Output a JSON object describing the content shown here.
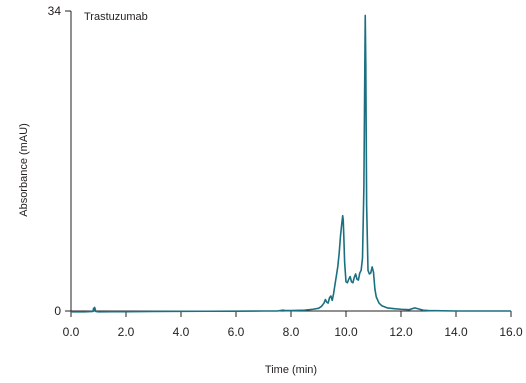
{
  "chart_data": {
    "type": "line",
    "title": "",
    "annotation": "Trastuzumab",
    "xlabel": "Time (min)",
    "ylabel": "Absorbance (mAU)",
    "xlim": [
      0,
      16
    ],
    "ylim": [
      0,
      34
    ],
    "x_ticks": [
      0,
      2,
      4,
      6,
      8,
      10,
      12,
      14,
      16
    ],
    "x_tick_labels": [
      "0.0",
      "2.0",
      "4.0",
      "6.0",
      "8.0",
      "10.0",
      "12.0",
      "14.0",
      "16.0"
    ],
    "y_ticks": [
      0,
      34
    ],
    "y_tick_labels": [
      "0",
      "34"
    ],
    "grid": false,
    "color": "#1a7080",
    "series": [
      {
        "x": [
          0.0,
          0.5,
          0.8,
          0.82,
          0.84,
          0.86,
          0.88,
          0.9,
          1.0,
          1.5,
          2.0,
          3.0,
          4.0,
          5.0,
          6.0,
          7.0,
          7.5,
          7.7,
          7.8,
          8.0,
          8.5,
          8.8,
          9.0,
          9.1,
          9.2,
          9.25,
          9.3,
          9.35,
          9.4,
          9.45,
          9.5,
          9.55,
          9.6,
          9.65,
          9.7,
          9.75,
          9.8,
          9.85,
          9.88,
          9.9,
          9.92,
          9.95,
          10.0,
          10.05,
          10.1,
          10.15,
          10.2,
          10.25,
          10.3,
          10.35,
          10.4,
          10.45,
          10.5,
          10.55,
          10.6,
          10.65,
          10.68,
          10.7,
          10.72,
          10.75,
          10.8,
          10.85,
          10.9,
          10.95,
          11.0,
          11.05,
          11.1,
          11.2,
          11.3,
          11.5,
          11.8,
          12.0,
          12.3,
          12.5,
          12.8,
          13.0,
          14.0,
          15.0,
          15.5,
          16.0
        ],
        "y": [
          -0.1,
          -0.1,
          -0.05,
          0.3,
          0.1,
          0.4,
          0.2,
          -0.05,
          -0.1,
          -0.08,
          -0.08,
          -0.05,
          -0.04,
          -0.03,
          -0.02,
          0.0,
          0.0,
          0.1,
          0.05,
          0.05,
          0.1,
          0.2,
          0.3,
          0.5,
          0.9,
          1.3,
          1.0,
          0.9,
          1.5,
          1.7,
          1.2,
          2.0,
          3.0,
          4.0,
          5.0,
          6.5,
          8.5,
          10.0,
          10.8,
          10.3,
          8.5,
          5.5,
          3.3,
          3.2,
          3.6,
          3.9,
          3.3,
          3.2,
          3.8,
          4.2,
          3.6,
          3.5,
          4.3,
          4.6,
          6.0,
          14.0,
          26.0,
          33.5,
          28.0,
          12.0,
          4.6,
          4.2,
          4.3,
          5.0,
          4.4,
          2.5,
          1.6,
          0.9,
          0.6,
          0.35,
          0.25,
          0.2,
          0.15,
          0.35,
          0.1,
          0.05,
          0.0,
          0.0,
          0.0,
          0.0
        ]
      }
    ]
  }
}
